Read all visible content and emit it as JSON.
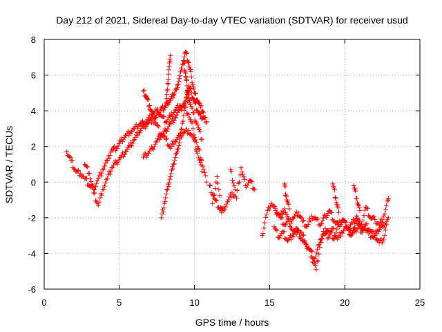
{
  "chart_data": {
    "type": "scatter",
    "title": "Day 212 of 2021, Sidereal Day-to-day VTEC variation (SDTVAR) for receiver usud",
    "xlabel": "GPS time / hours",
    "ylabel": "SDTVAR / TECUs",
    "xlim": [
      0,
      25
    ],
    "ylim": [
      -6,
      8
    ],
    "xticks": [
      0,
      5,
      10,
      15,
      20,
      25
    ],
    "yticks": [
      -6,
      -4,
      -2,
      0,
      2,
      4,
      6,
      8
    ],
    "grid": true,
    "marker": "+",
    "color": "#ff0000",
    "series": [
      {
        "name": "SDTVAR",
        "x": [
          1.5,
          1.8,
          2.1,
          2.4,
          2.7,
          3.0,
          3.3,
          3.6,
          3.9,
          4.2,
          4.5,
          4.8,
          5.1,
          5.4,
          5.7,
          6.0,
          6.3,
          6.6,
          6.9,
          7.2,
          7.5,
          7.8,
          8.1,
          8.4,
          8.7,
          9.0,
          9.3,
          9.6,
          9.9,
          10.2,
          10.5,
          10.8,
          2.7,
          3.0,
          3.3,
          3.6,
          3.9,
          4.2,
          4.5,
          4.8,
          5.1,
          5.4,
          5.7,
          6.0,
          6.3,
          6.6,
          6.9,
          7.2,
          7.5,
          7.8,
          8.1,
          8.4,
          8.7,
          9.0,
          9.3,
          9.6,
          9.9,
          10.2,
          10.5,
          6.6,
          6.9,
          7.2,
          7.5,
          7.8,
          8.1,
          8.4,
          8.7,
          9.0,
          9.3,
          9.6,
          9.9,
          10.2,
          10.5,
          7.8,
          8.0,
          8.2,
          8.4,
          8.6,
          8.8,
          9.0,
          9.2,
          9.4,
          9.6,
          9.8,
          10.0,
          10.2,
          10.4,
          10.6,
          10.8,
          6.6,
          6.8,
          7.0,
          7.2,
          7.4,
          7.6,
          7.8,
          8.0,
          8.2,
          8.4,
          8.6,
          8.8,
          9.0,
          9.2,
          9.4,
          9.6,
          9.8,
          10.0,
          10.2,
          10.4,
          10.6,
          8.1,
          8.2,
          8.3,
          8.4,
          9.3,
          9.4,
          9.5,
          9.6,
          9.7,
          11.0,
          11.3,
          11.6,
          11.9,
          12.2,
          12.5,
          12.8,
          13.1,
          13.4,
          13.7,
          14.0,
          11.2,
          11.5,
          11.8,
          12.4,
          12.7,
          14.5,
          14.8,
          15.1,
          15.4,
          15.7,
          16.0,
          16.3,
          16.6,
          16.9,
          17.2,
          17.5,
          17.8,
          18.1,
          18.4,
          18.7,
          19.0,
          19.3,
          19.6,
          19.9,
          20.2,
          20.5,
          20.8,
          21.1,
          21.4,
          21.7,
          22.0,
          22.3,
          22.6,
          22.9,
          15.3,
          15.6,
          15.9,
          16.2,
          16.5,
          16.8,
          17.1,
          17.4,
          17.7,
          18.0,
          18.3,
          18.6,
          18.9,
          19.2,
          19.5,
          19.8,
          20.1,
          20.4,
          20.7,
          21.0,
          21.3,
          21.6,
          21.9,
          22.2,
          22.5,
          22.8,
          15.4,
          15.7,
          16.0,
          16.3,
          16.6,
          16.9,
          17.2,
          17.5,
          17.8,
          18.1,
          18.4,
          18.7,
          19.0,
          19.3,
          19.6,
          19.9,
          20.2,
          20.5,
          20.8,
          21.1,
          21.4,
          21.7,
          22.0,
          22.3,
          22.6,
          22.9,
          16.0,
          16.1,
          16.3,
          19.2,
          19.4,
          19.6,
          20.6,
          20.8,
          21.0,
          22.9
        ],
        "y": [
          1.7,
          1.2,
          0.6,
          0.5,
          0.2,
          -0.2,
          -0.4,
          0.2,
          0.7,
          1.2,
          1.8,
          1.9,
          2.3,
          2.6,
          2.8,
          3.0,
          3.2,
          3.3,
          3.5,
          3.8,
          4.0,
          3.7,
          3.4,
          3.7,
          4.0,
          4.3,
          4.2,
          3.8,
          3.0,
          2.0,
          1.2,
          0.0,
          1.0,
          0.5,
          -0.6,
          -1.3,
          -0.4,
          0.2,
          0.8,
          1.1,
          1.4,
          1.7,
          2.0,
          2.4,
          2.8,
          3.1,
          3.3,
          3.5,
          3.2,
          2.6,
          2.9,
          3.3,
          3.6,
          4.0,
          4.4,
          4.7,
          3.9,
          3.2,
          2.4,
          1.4,
          1.6,
          1.9,
          2.3,
          2.7,
          2.4,
          1.9,
          2.3,
          2.6,
          2.8,
          2.9,
          2.5,
          1.6,
          0.6,
          -2.0,
          -1.2,
          -0.4,
          0.3,
          1.0,
          1.6,
          2.2,
          3.3,
          4.5,
          5.4,
          5.0,
          4.5,
          4.0,
          3.7,
          3.6,
          3.4,
          5.1,
          4.8,
          4.3,
          3.8,
          3.6,
          3.9,
          4.1,
          4.2,
          4.4,
          4.6,
          4.9,
          5.2,
          5.8,
          6.6,
          7.3,
          6.7,
          5.9,
          5.0,
          4.6,
          4.2,
          3.9,
          4.4,
          5.2,
          6.3,
          7.1,
          6.8,
          6.1,
          5.4,
          4.9,
          4.6,
          -0.2,
          -0.9,
          -1.4,
          -1.6,
          -1.1,
          -0.6,
          -0.9,
          0.8,
          -0.2,
          0.1,
          -0.4,
          -1.2,
          0.3,
          -1.7,
          0.7,
          -0.4,
          -3.0,
          -1.8,
          -1.2,
          -1.6,
          -1.9,
          -1.5,
          -2.3,
          -2.0,
          -1.7,
          -2.2,
          -2.5,
          -1.9,
          -2.1,
          -2.4,
          -1.9,
          -1.6,
          -2.2,
          -2.4,
          -2.1,
          -2.6,
          -2.3,
          -1.9,
          -2.6,
          -1.4,
          -2.0,
          -2.1,
          -2.4,
          -1.9,
          -1.0,
          -2.5,
          -3.1,
          -2.8,
          -3.3,
          -3.0,
          -2.6,
          -3.2,
          -3.5,
          -3.8,
          -4.3,
          -3.5,
          -2.9,
          -3.1,
          -2.6,
          -3.2,
          -2.8,
          -2.5,
          -3.0,
          -2.7,
          -2.4,
          -2.6,
          -2.9,
          -3.1,
          -2.7,
          -2.5,
          -2.2,
          -1.5,
          -2.0,
          -2.4,
          -2.2,
          -2.9,
          -2.7,
          -3.0,
          -3.6,
          -4.2,
          -4.9,
          -3.3,
          -2.6,
          -2.8,
          -3.2,
          -2.4,
          -2.1,
          -2.6,
          -2.9,
          -2.2,
          -2.8,
          -2.4,
          -2.7,
          -3.0,
          -3.4,
          -3.2,
          -2.0,
          -0.1,
          -0.8,
          -1.5,
          -0.1,
          -0.9,
          -1.7,
          -0.2,
          -0.9,
          -1.6,
          -0.9
        ]
      }
    ]
  }
}
